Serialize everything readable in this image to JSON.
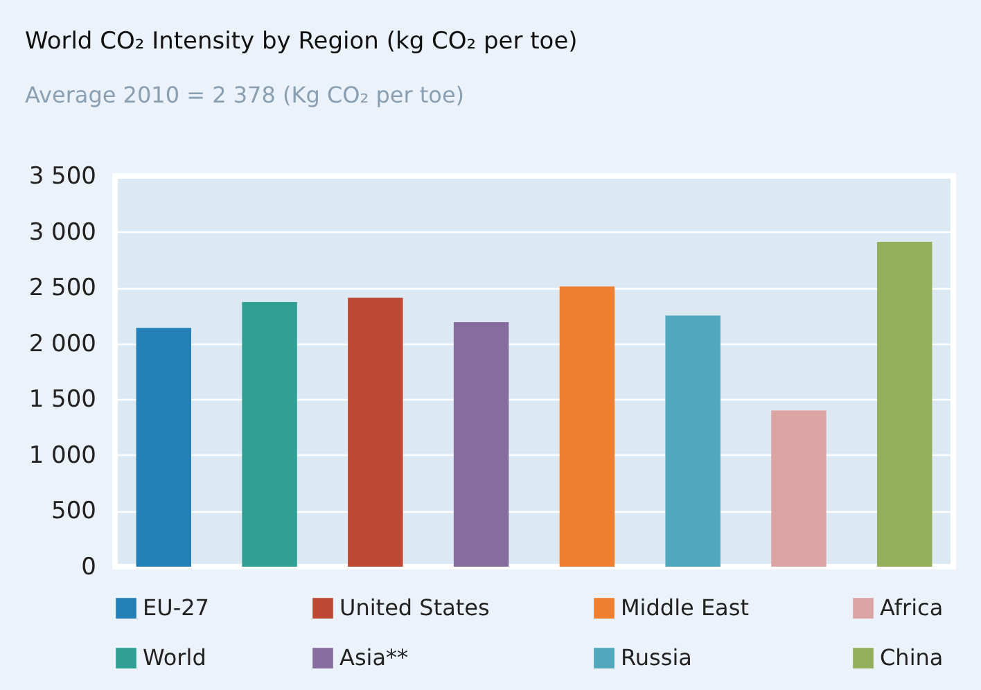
{
  "chart_data": {
    "type": "bar",
    "title": "World CO₂ Intensity by Region (kg CO₂ per toe)",
    "subtitle": "Average 2010 = 2 378 (Kg CO₂ per toe)",
    "categories": [
      null,
      null,
      null,
      null,
      null,
      null,
      null,
      null
    ],
    "series": [
      {
        "name": "EU-27",
        "color": "#2680b8",
        "values": [
          2140,
          null,
          null,
          null,
          null,
          null,
          null,
          null
        ]
      },
      {
        "name": "World",
        "color": "#30a095",
        "values": [
          null,
          2370,
          null,
          null,
          null,
          null,
          null,
          null
        ]
      },
      {
        "name": "United States",
        "color": "#be4a35",
        "values": [
          null,
          null,
          2410,
          null,
          null,
          null,
          null,
          null
        ]
      },
      {
        "name": "Asia**",
        "color": "#866d9e",
        "values": [
          null,
          null,
          null,
          2190,
          null,
          null,
          null,
          null
        ]
      },
      {
        "name": "Middle East",
        "color": "#ee7f31",
        "values": [
          null,
          null,
          null,
          null,
          2510,
          null,
          null,
          null
        ]
      },
      {
        "name": "Russia",
        "color": "#51a8be",
        "values": [
          null,
          null,
          null,
          null,
          null,
          2250,
          null,
          null
        ]
      },
      {
        "name": "Africa",
        "color": "#dba4a2",
        "values": [
          null,
          null,
          null,
          null,
          null,
          null,
          1400,
          null
        ]
      },
      {
        "name": "China",
        "color": "#94af5c",
        "values": [
          null,
          null,
          null,
          null,
          null,
          null,
          null,
          2910
        ]
      }
    ],
    "ylim": [
      0,
      3500
    ],
    "yticks": [
      0,
      500,
      {
        "value": 1000,
        "label": "1 000"
      },
      {
        "value": 1500,
        "label": "1 500"
      },
      {
        "value": 2000,
        "label": "2 000"
      },
      {
        "value": 2500,
        "label": "2 500"
      },
      {
        "value": 3000,
        "label": "3 000"
      },
      {
        "value": 3500,
        "label": "3 500"
      }
    ],
    "grid": "y",
    "legend": "bottom",
    "tick_labels": "y"
  }
}
